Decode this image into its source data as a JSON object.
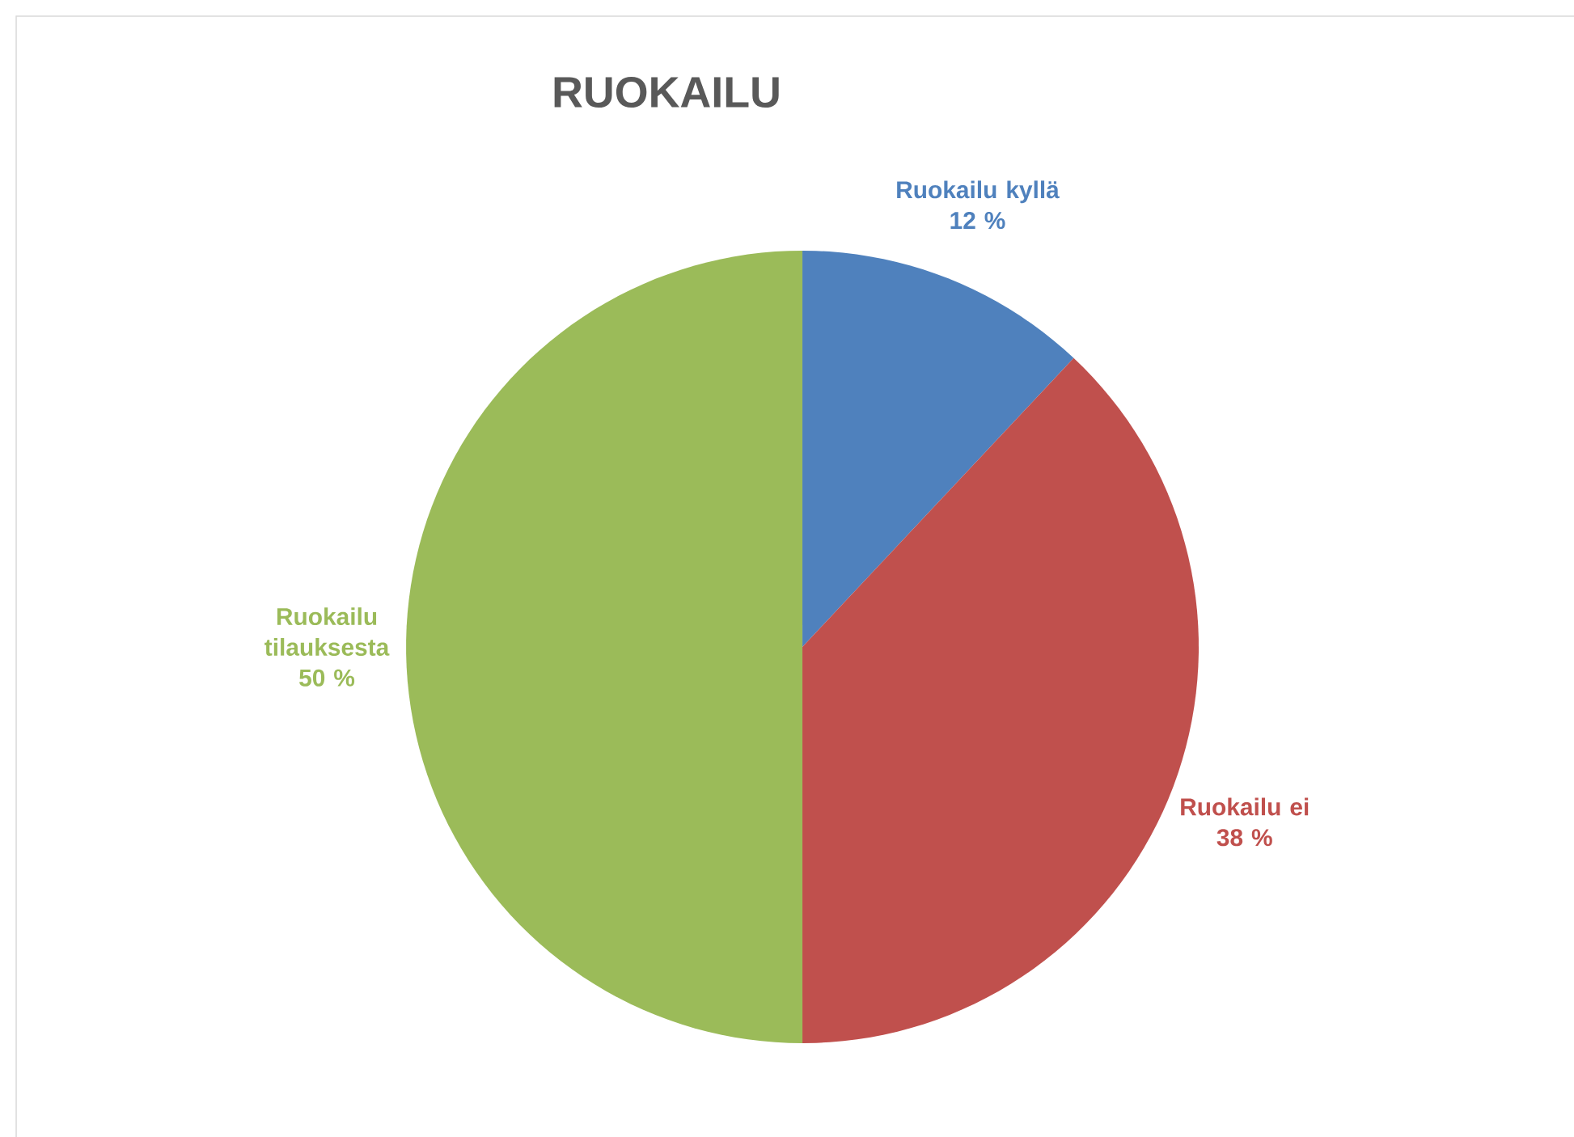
{
  "chart_data": {
    "type": "pie",
    "title": "RUOKAILU",
    "categories": [
      "Ruokailu kyllä",
      "Ruokailu ei",
      "Ruokailu tilauksesta"
    ],
    "values": [
      12,
      38,
      50
    ],
    "colors": [
      "#4f81bd",
      "#c0504d",
      "#9bbb59"
    ],
    "value_labels": [
      "12 %",
      "38 %",
      "50 %"
    ]
  }
}
